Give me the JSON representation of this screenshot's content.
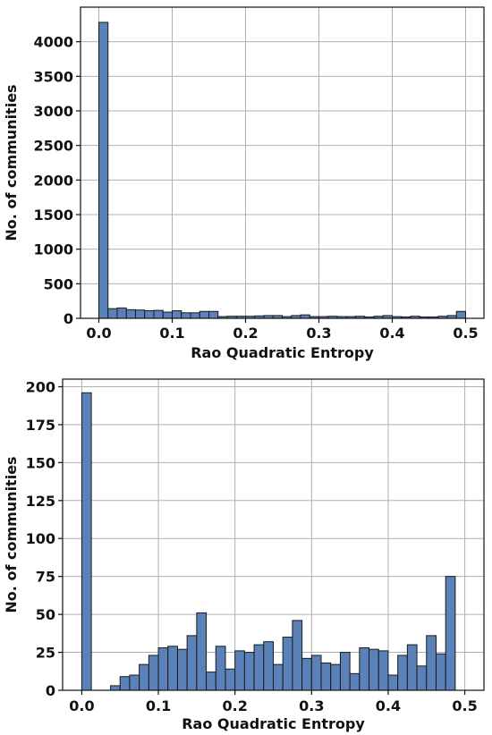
{
  "chart_data": [
    {
      "type": "bar",
      "xlabel": "Rao Quadratic Entropy",
      "ylabel": "No. of communities",
      "xlim": [
        -0.025,
        0.525
      ],
      "ylim": [
        0,
        4500
      ],
      "xticks": [
        "0.0",
        "0.1",
        "0.2",
        "0.3",
        "0.4",
        "0.5"
      ],
      "yticks": [
        "0",
        "500",
        "1000",
        "1500",
        "2000",
        "2500",
        "3000",
        "3500",
        "4000"
      ],
      "grid": true,
      "bin_start": 0.0,
      "bin_width": 0.0125,
      "values": [
        4280,
        140,
        150,
        125,
        120,
        110,
        115,
        90,
        110,
        80,
        80,
        100,
        100,
        25,
        30,
        30,
        30,
        35,
        40,
        40,
        25,
        40,
        50,
        25,
        25,
        30,
        25,
        25,
        30,
        20,
        30,
        40,
        25,
        20,
        30,
        20,
        20,
        30,
        40,
        100
      ]
    },
    {
      "type": "bar",
      "xlabel": "Rao Quadratic Entropy",
      "ylabel": "No. of communities",
      "xlim": [
        -0.025,
        0.525
      ],
      "ylim": [
        0,
        205
      ],
      "xticks": [
        "0.0",
        "0.1",
        "0.2",
        "0.3",
        "0.4",
        "0.5"
      ],
      "yticks": [
        "0",
        "25",
        "50",
        "75",
        "100",
        "125",
        "150",
        "175",
        "200"
      ],
      "grid": true,
      "bin_start": 0.0,
      "bin_width": 0.0125,
      "values": [
        196,
        0,
        0,
        3,
        9,
        10,
        17,
        23,
        28,
        29,
        27,
        36,
        51,
        12,
        29,
        14,
        26,
        25,
        30,
        32,
        17,
        35,
        46,
        21,
        23,
        18,
        17,
        25,
        11,
        28,
        27,
        26,
        10,
        23,
        30,
        16,
        36,
        24,
        75
      ]
    }
  ]
}
